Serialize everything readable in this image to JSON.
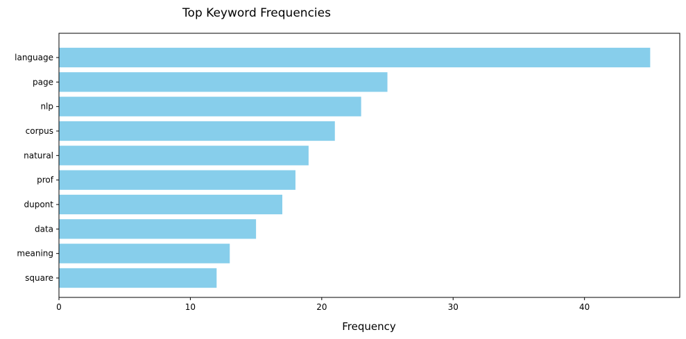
{
  "chart_data": {
    "type": "bar",
    "orientation": "horizontal",
    "title": "Top Keyword Frequencies",
    "xlabel": "Frequency",
    "ylabel": "",
    "categories": [
      "language",
      "page",
      "nlp",
      "corpus",
      "natural",
      "prof",
      "dupont",
      "data",
      "meaning",
      "square"
    ],
    "values": [
      45,
      25,
      23,
      21,
      19,
      18,
      17,
      15,
      13,
      12
    ],
    "xlim": [
      0,
      47.25
    ],
    "xticks": [
      0,
      10,
      20,
      30,
      40
    ],
    "grid": false,
    "legend": "none",
    "bar_color": "#87CEEB"
  }
}
